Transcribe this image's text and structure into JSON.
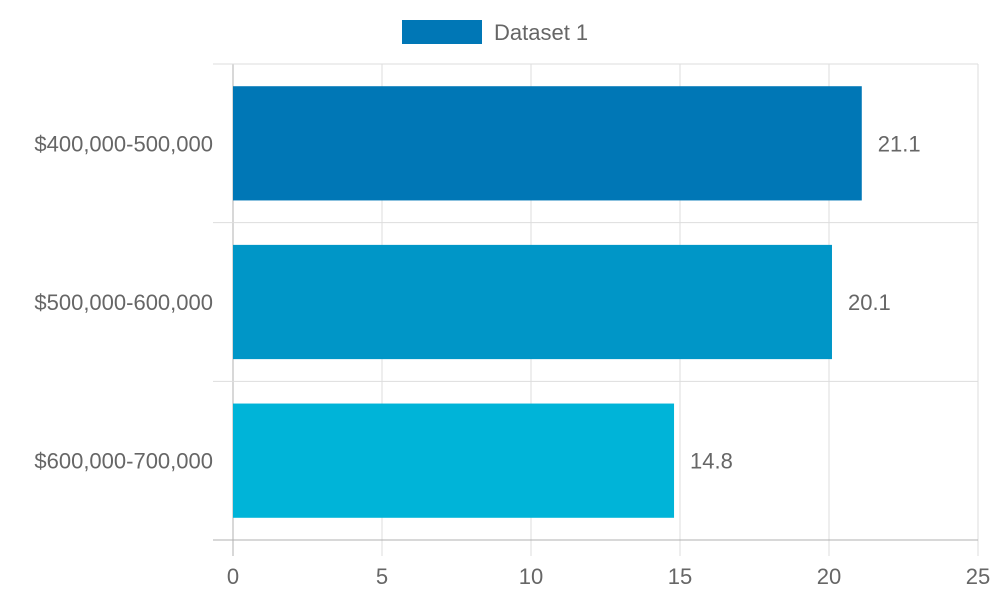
{
  "chart_data": {
    "type": "bar",
    "orientation": "horizontal",
    "categories": [
      "$400,000-500,000",
      "$500,000-600,000",
      "$600,000-700,000"
    ],
    "series": [
      {
        "name": "Dataset 1",
        "values": [
          21.1,
          20.1,
          14.8
        ],
        "colors": [
          "#0077b6",
          "#0096c7",
          "#00b4d8"
        ]
      }
    ],
    "data_labels": [
      "21.1",
      "20.1",
      "14.8"
    ],
    "xlim": [
      0,
      25
    ],
    "x_ticks": [
      0,
      5,
      10,
      15,
      20,
      25
    ],
    "grid": true,
    "legend": "top-center",
    "title": "",
    "xlabel": "",
    "ylabel": ""
  }
}
